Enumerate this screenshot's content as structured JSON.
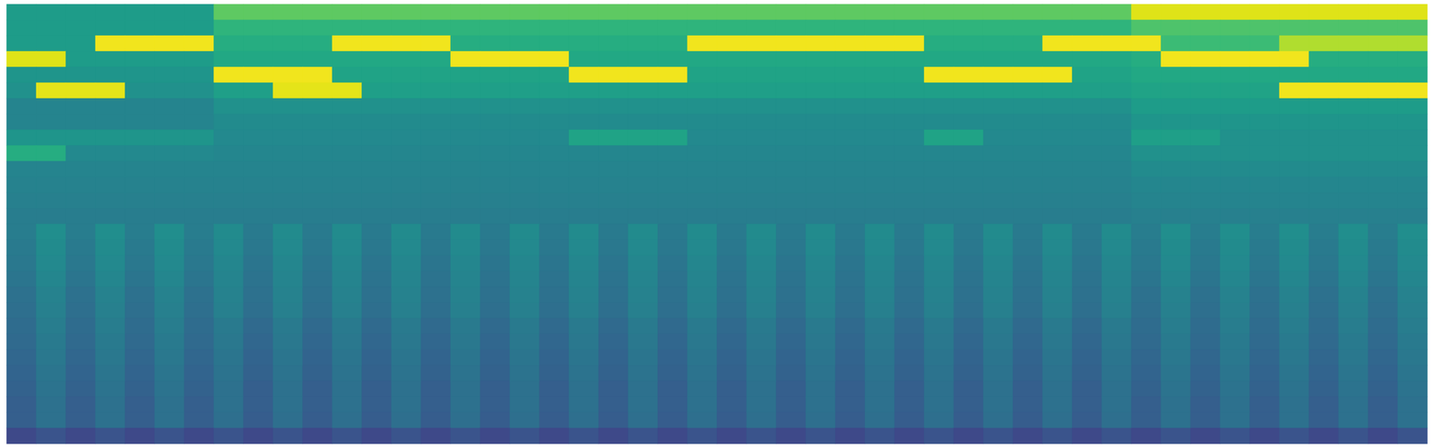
{
  "chart_data": {
    "type": "heatmap",
    "color": "viridis",
    "tick_labels": false,
    "zlim": [
      0,
      100
    ],
    "cells": [
      [
        55,
        55,
        55,
        55,
        55,
        55,
        55,
        75,
        75,
        75,
        75,
        75,
        75,
        75,
        75,
        75,
        75,
        75,
        75,
        75,
        75,
        75,
        75,
        75,
        75,
        75,
        75,
        75,
        75,
        75,
        75,
        75,
        75,
        75,
        75,
        75,
        75,
        75,
        95,
        95,
        95,
        95,
        95,
        95,
        95,
        95,
        95,
        95
      ],
      [
        55,
        55,
        55,
        55,
        55,
        55,
        55,
        65,
        65,
        65,
        65,
        65,
        65,
        65,
        65,
        65,
        65,
        65,
        65,
        65,
        65,
        65,
        65,
        65,
        65,
        65,
        65,
        65,
        65,
        65,
        65,
        65,
        65,
        65,
        65,
        65,
        65,
        65,
        72,
        72,
        72,
        72,
        72,
        72,
        72,
        72,
        72,
        72
      ],
      [
        55,
        55,
        55,
        98,
        98,
        98,
        98,
        62,
        62,
        62,
        62,
        98,
        98,
        98,
        98,
        62,
        62,
        62,
        62,
        62,
        62,
        62,
        62,
        98,
        98,
        98,
        98,
        98,
        98,
        98,
        98,
        62,
        62,
        62,
        62,
        98,
        98,
        98,
        98,
        68,
        68,
        68,
        68,
        88,
        88,
        88,
        88,
        88
      ],
      [
        95,
        95,
        55,
        55,
        55,
        55,
        55,
        60,
        60,
        60,
        60,
        60,
        60,
        60,
        60,
        98,
        98,
        98,
        98,
        60,
        60,
        60,
        60,
        60,
        60,
        60,
        60,
        60,
        60,
        60,
        60,
        60,
        60,
        60,
        60,
        60,
        60,
        60,
        62,
        98,
        98,
        98,
        98,
        98,
        62,
        62,
        62,
        62
      ],
      [
        52,
        52,
        52,
        52,
        52,
        52,
        52,
        98,
        98,
        98,
        98,
        58,
        58,
        58,
        58,
        58,
        58,
        58,
        58,
        98,
        98,
        98,
        98,
        58,
        58,
        58,
        58,
        58,
        58,
        58,
        58,
        98,
        98,
        98,
        98,
        98,
        58,
        58,
        60,
        60,
        60,
        60,
        60,
        60,
        60,
        60,
        60,
        60
      ],
      [
        50,
        96,
        96,
        96,
        50,
        50,
        50,
        56,
        56,
        96,
        96,
        96,
        56,
        56,
        56,
        56,
        56,
        56,
        56,
        56,
        56,
        56,
        56,
        56,
        56,
        56,
        56,
        56,
        56,
        56,
        56,
        56,
        56,
        56,
        56,
        56,
        56,
        56,
        58,
        58,
        58,
        58,
        58,
        98,
        98,
        98,
        98,
        98
      ],
      [
        45,
        45,
        45,
        45,
        45,
        45,
        45,
        50,
        50,
        50,
        50,
        50,
        50,
        50,
        50,
        50,
        50,
        50,
        50,
        50,
        50,
        50,
        50,
        50,
        50,
        50,
        50,
        50,
        50,
        50,
        50,
        50,
        50,
        50,
        50,
        50,
        50,
        50,
        55,
        55,
        55,
        55,
        55,
        55,
        55,
        55,
        55,
        55
      ],
      [
        45,
        45,
        45,
        45,
        45,
        45,
        45,
        48,
        48,
        48,
        48,
        48,
        48,
        48,
        48,
        48,
        48,
        48,
        48,
        48,
        48,
        48,
        48,
        48,
        48,
        48,
        48,
        48,
        48,
        48,
        48,
        48,
        48,
        48,
        48,
        48,
        48,
        48,
        52,
        52,
        52,
        52,
        52,
        52,
        52,
        52,
        52,
        52
      ],
      [
        52,
        52,
        52,
        52,
        52,
        52,
        52,
        47,
        47,
        47,
        47,
        47,
        47,
        47,
        47,
        47,
        47,
        47,
        47,
        58,
        58,
        58,
        58,
        47,
        47,
        47,
        47,
        47,
        47,
        47,
        47,
        58,
        58,
        47,
        47,
        47,
        47,
        47,
        56,
        56,
        56,
        50,
        50,
        50,
        50,
        50,
        50,
        50
      ],
      [
        62,
        62,
        47,
        47,
        47,
        47,
        47,
        46,
        46,
        46,
        46,
        46,
        46,
        46,
        46,
        46,
        46,
        46,
        46,
        46,
        46,
        46,
        46,
        46,
        46,
        46,
        46,
        46,
        46,
        46,
        46,
        46,
        46,
        46,
        46,
        46,
        46,
        46,
        50,
        50,
        50,
        50,
        50,
        50,
        50,
        50,
        50,
        50
      ],
      [
        45,
        45,
        45,
        45,
        45,
        45,
        45,
        45,
        45,
        45,
        45,
        45,
        45,
        45,
        45,
        45,
        45,
        45,
        45,
        45,
        45,
        45,
        45,
        45,
        45,
        45,
        45,
        45,
        45,
        45,
        45,
        45,
        45,
        45,
        45,
        45,
        45,
        45,
        48,
        48,
        48,
        48,
        48,
        48,
        48,
        48,
        48,
        48
      ],
      [
        44,
        44,
        44,
        44,
        44,
        44,
        44,
        44,
        44,
        44,
        44,
        44,
        44,
        44,
        44,
        44,
        44,
        44,
        44,
        44,
        44,
        44,
        44,
        44,
        44,
        44,
        44,
        44,
        44,
        44,
        44,
        44,
        44,
        44,
        44,
        44,
        44,
        44,
        46,
        46,
        46,
        46,
        46,
        46,
        46,
        46,
        46,
        46
      ],
      [
        43,
        43,
        43,
        43,
        43,
        43,
        43,
        43,
        43,
        43,
        43,
        43,
        43,
        43,
        43,
        43,
        43,
        43,
        43,
        43,
        43,
        43,
        43,
        43,
        43,
        43,
        43,
        43,
        43,
        43,
        43,
        43,
        43,
        43,
        43,
        43,
        43,
        43,
        45,
        45,
        45,
        45,
        45,
        45,
        45,
        45,
        45,
        45
      ],
      [
        42,
        42,
        42,
        42,
        42,
        42,
        42,
        42,
        42,
        42,
        42,
        42,
        42,
        42,
        42,
        42,
        42,
        42,
        42,
        42,
        42,
        42,
        42,
        42,
        42,
        42,
        42,
        42,
        42,
        42,
        42,
        42,
        42,
        42,
        42,
        42,
        42,
        42,
        43,
        43,
        43,
        43,
        43,
        43,
        43,
        43,
        43,
        43
      ],
      [
        42,
        49,
        42,
        49,
        42,
        49,
        42,
        48,
        41,
        48,
        41,
        48,
        41,
        48,
        41,
        48,
        41,
        48,
        41,
        48,
        41,
        48,
        41,
        48,
        41,
        48,
        41,
        48,
        41,
        48,
        41,
        48,
        41,
        48,
        41,
        48,
        41,
        48,
        42,
        49,
        42,
        49,
        42,
        49,
        42,
        49,
        42,
        49
      ],
      [
        41,
        48,
        41,
        48,
        41,
        48,
        41,
        47,
        40,
        47,
        40,
        47,
        40,
        47,
        40,
        47,
        40,
        47,
        40,
        47,
        40,
        47,
        40,
        47,
        40,
        47,
        40,
        47,
        40,
        47,
        40,
        47,
        40,
        47,
        40,
        47,
        40,
        47,
        41,
        48,
        41,
        48,
        41,
        48,
        41,
        48,
        41,
        48
      ],
      [
        40,
        47,
        40,
        47,
        40,
        47,
        40,
        46,
        39,
        46,
        39,
        46,
        39,
        46,
        39,
        46,
        39,
        46,
        39,
        46,
        39,
        46,
        39,
        46,
        39,
        46,
        39,
        46,
        39,
        46,
        39,
        46,
        39,
        46,
        39,
        46,
        39,
        46,
        40,
        47,
        40,
        47,
        40,
        47,
        40,
        47,
        40,
        47
      ],
      [
        39,
        46,
        39,
        46,
        39,
        46,
        39,
        45,
        38,
        45,
        38,
        45,
        38,
        45,
        38,
        45,
        38,
        45,
        38,
        45,
        38,
        45,
        38,
        45,
        38,
        45,
        38,
        45,
        38,
        45,
        38,
        45,
        38,
        45,
        38,
        45,
        38,
        45,
        39,
        46,
        39,
        46,
        39,
        46,
        39,
        46,
        39,
        46
      ],
      [
        37,
        44,
        37,
        44,
        37,
        44,
        37,
        44,
        37,
        44,
        37,
        44,
        37,
        44,
        37,
        44,
        37,
        44,
        37,
        44,
        37,
        44,
        37,
        44,
        37,
        44,
        37,
        44,
        37,
        44,
        37,
        44,
        37,
        44,
        37,
        44,
        37,
        44,
        37,
        44,
        37,
        44,
        37,
        44,
        37,
        44,
        37,
        44
      ],
      [
        36,
        43,
        36,
        43,
        36,
        43,
        36,
        43,
        36,
        43,
        36,
        43,
        36,
        43,
        36,
        43,
        36,
        43,
        36,
        43,
        36,
        43,
        36,
        43,
        36,
        43,
        36,
        43,
        36,
        43,
        36,
        43,
        36,
        43,
        36,
        43,
        36,
        43,
        36,
        43,
        36,
        43,
        36,
        43,
        36,
        43,
        36,
        43
      ],
      [
        35,
        42,
        35,
        42,
        35,
        42,
        35,
        41,
        34,
        41,
        34,
        41,
        34,
        41,
        34,
        41,
        34,
        41,
        34,
        41,
        34,
        41,
        34,
        41,
        34,
        41,
        34,
        41,
        34,
        41,
        34,
        41,
        34,
        41,
        34,
        41,
        34,
        41,
        35,
        42,
        35,
        42,
        35,
        42,
        35,
        42,
        35,
        42
      ],
      [
        34,
        41,
        34,
        41,
        34,
        41,
        34,
        40,
        33,
        40,
        33,
        40,
        33,
        40,
        33,
        40,
        33,
        40,
        33,
        40,
        33,
        40,
        33,
        40,
        33,
        40,
        33,
        40,
        33,
        40,
        33,
        40,
        33,
        40,
        33,
        40,
        33,
        40,
        34,
        41,
        34,
        41,
        34,
        41,
        34,
        41,
        34,
        41
      ],
      [
        33,
        40,
        33,
        40,
        33,
        40,
        33,
        39,
        32,
        39,
        32,
        39,
        32,
        39,
        32,
        39,
        32,
        39,
        32,
        39,
        32,
        39,
        32,
        39,
        32,
        39,
        32,
        39,
        32,
        39,
        32,
        39,
        32,
        39,
        32,
        39,
        32,
        39,
        33,
        40,
        33,
        40,
        33,
        40,
        33,
        40,
        33,
        40
      ],
      [
        32,
        39,
        32,
        39,
        32,
        39,
        32,
        38,
        31,
        38,
        31,
        38,
        31,
        38,
        31,
        38,
        31,
        38,
        31,
        38,
        31,
        38,
        31,
        38,
        31,
        38,
        31,
        38,
        31,
        38,
        31,
        38,
        31,
        38,
        31,
        38,
        31,
        38,
        32,
        39,
        32,
        39,
        32,
        39,
        32,
        39,
        32,
        39
      ],
      [
        31,
        38,
        31,
        38,
        31,
        38,
        31,
        37,
        30,
        37,
        30,
        37,
        30,
        37,
        30,
        37,
        30,
        37,
        30,
        37,
        30,
        37,
        30,
        37,
        30,
        37,
        30,
        37,
        30,
        37,
        30,
        37,
        30,
        37,
        30,
        37,
        30,
        37,
        31,
        38,
        31,
        38,
        31,
        38,
        31,
        38,
        31,
        38
      ],
      [
        30,
        37,
        30,
        37,
        30,
        37,
        30,
        37,
        30,
        37,
        30,
        37,
        30,
        37,
        30,
        37,
        30,
        37,
        30,
        37,
        30,
        37,
        30,
        37,
        30,
        37,
        30,
        37,
        30,
        37,
        30,
        37,
        30,
        37,
        30,
        37,
        30,
        37,
        30,
        37,
        30,
        37,
        30,
        37,
        30,
        37,
        30,
        37
      ],
      [
        30,
        37,
        30,
        37,
        30,
        37,
        30,
        36,
        29,
        36,
        29,
        36,
        29,
        36,
        29,
        36,
        29,
        36,
        29,
        36,
        29,
        36,
        29,
        36,
        29,
        36,
        29,
        36,
        29,
        36,
        29,
        36,
        29,
        36,
        29,
        36,
        29,
        36,
        30,
        37,
        30,
        37,
        30,
        37,
        30,
        37,
        30,
        37
      ],
      [
        22,
        26,
        22,
        26,
        22,
        26,
        22,
        26,
        22,
        26,
        22,
        26,
        22,
        26,
        22,
        26,
        22,
        26,
        22,
        26,
        22,
        26,
        22,
        26,
        22,
        26,
        22,
        26,
        22,
        26,
        22,
        26,
        22,
        26,
        22,
        26,
        22,
        26,
        22,
        26,
        22,
        26,
        22,
        26,
        22,
        26,
        22,
        26
      ]
    ]
  }
}
